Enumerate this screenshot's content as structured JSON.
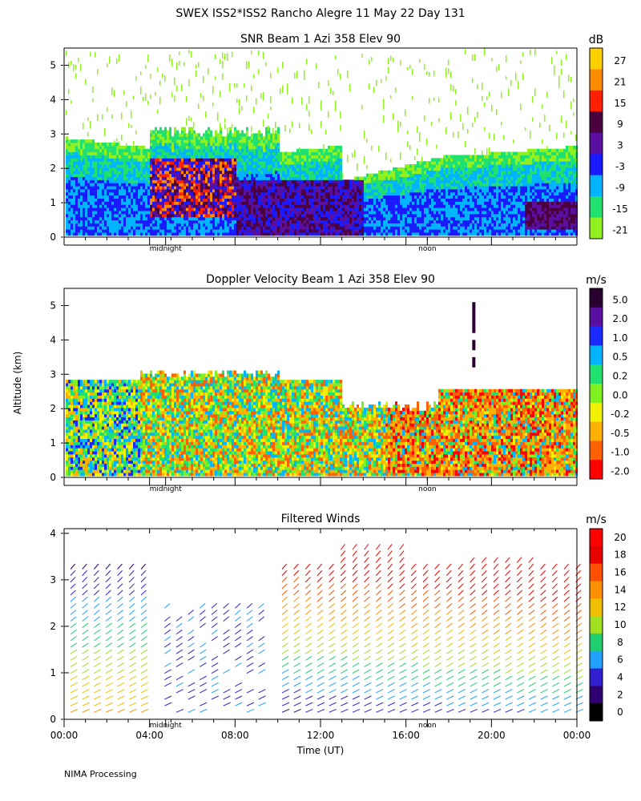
{
  "header": {
    "title": "SWEX ISS2*ISS2 Rancho Alegre  11 May 22 Day 131"
  },
  "footer": {
    "processing": "NIMA Processing"
  },
  "chart_data": [
    {
      "type": "heatmap",
      "title": "SNR Beam 1 Azi 358 Elev 90",
      "ylabel": "",
      "ylim": [
        0,
        5.5
      ],
      "yticks": [
        "0",
        "1",
        "2",
        "3",
        "4",
        "5"
      ],
      "ytick_values": [
        0,
        1,
        2,
        3,
        4,
        5
      ],
      "markers": [
        "midnight",
        "noon"
      ],
      "marker_hours": [
        4.75,
        17.0
      ],
      "colorbar": {
        "unit": "dB",
        "labels": [
          "27",
          "21",
          "15",
          "9",
          "3",
          "-3",
          "-9",
          "-15",
          "-21"
        ],
        "colors": [
          "#ffd000",
          "#ff8c00",
          "#ff2000",
          "#4b0040",
          "#5a0fa0",
          "#1a1aff",
          "#00b4ff",
          "#20e070",
          "#90f020"
        ]
      }
    },
    {
      "type": "heatmap",
      "title": "Doppler Velocity Beam 1 Azi 358 Elev 90",
      "ylabel": "Altitude (km)",
      "ylim": [
        0,
        5.5
      ],
      "yticks": [
        "0",
        "1",
        "2",
        "3",
        "4",
        "5"
      ],
      "ytick_values": [
        0,
        1,
        2,
        3,
        4,
        5
      ],
      "markers": [
        "midnight",
        "noon"
      ],
      "marker_hours": [
        4.75,
        17.0
      ],
      "colorbar": {
        "unit": "m/s",
        "labels": [
          "5.0",
          "2.0",
          "1.0",
          "0.5",
          "0.2",
          "0.0",
          "-0.2",
          "-0.5",
          "-1.0",
          "-2.0"
        ],
        "colors": [
          "#2a0030",
          "#5a0fa0",
          "#1a2aff",
          "#00b4ff",
          "#20e070",
          "#80f020",
          "#f0f000",
          "#ffb000",
          "#ff6000",
          "#ff0000"
        ]
      }
    },
    {
      "type": "scatter",
      "title": "Filtered Winds",
      "xlabel": "Time (UT)",
      "ylabel": "",
      "xlim": [
        0,
        24
      ],
      "ylim": [
        0,
        4.1
      ],
      "xticks": [
        "00:00",
        "04:00",
        "08:00",
        "12:00",
        "16:00",
        "20:00",
        "00:00"
      ],
      "xtick_values": [
        0,
        4,
        8,
        12,
        16,
        20,
        24
      ],
      "yticks": [
        "0",
        "1",
        "2",
        "3",
        "4"
      ],
      "ytick_values": [
        0,
        1,
        2,
        3,
        4
      ],
      "markers": [
        "midnight",
        "noon"
      ],
      "marker_hours": [
        4.75,
        17.0
      ],
      "colorbar": {
        "unit": "m/s",
        "labels": [
          "20",
          "18",
          "16",
          "14",
          "12",
          "10",
          "8",
          "6",
          "4",
          "2",
          "0"
        ],
        "colors": [
          "#ff0000",
          "#e80000",
          "#ff5000",
          "#ff9000",
          "#f0c000",
          "#a0e020",
          "#20d070",
          "#20a0ff",
          "#3020d0",
          "#300070",
          "#000000"
        ]
      }
    }
  ]
}
